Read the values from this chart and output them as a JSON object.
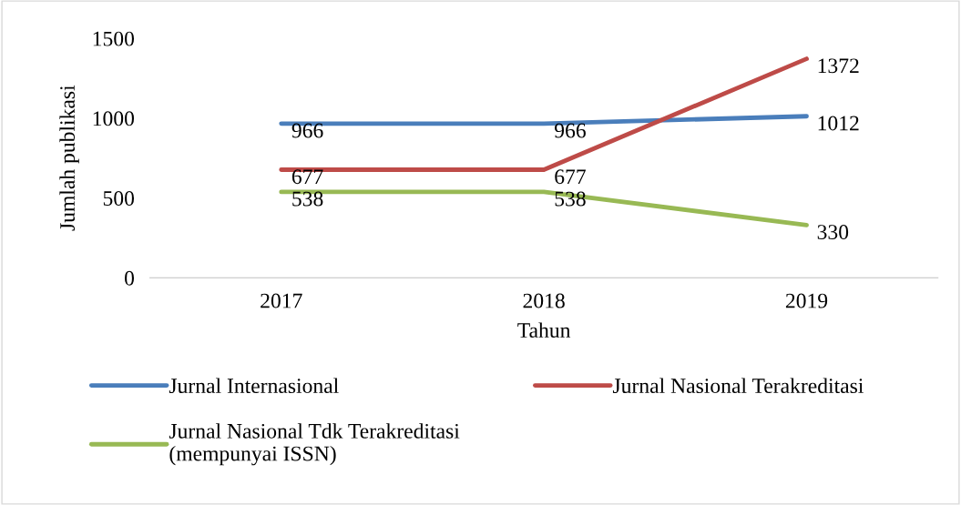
{
  "chart_data": {
    "type": "line",
    "xlabel": "Tahun",
    "ylabel": "Jumlah publikasi",
    "categories": [
      "2017",
      "2018",
      "2019"
    ],
    "series": [
      {
        "name": "Jurnal Internasional",
        "color": "#4a7ebb",
        "values": [
          966,
          966,
          1012
        ]
      },
      {
        "name": "Jurnal Nasional Terakreditasi",
        "color": "#be4b48",
        "values": [
          677,
          677,
          1372
        ]
      },
      {
        "name": "Jurnal Nasional Tdk Terakreditasi\n(mempunyai ISSN)",
        "color": "#98b954",
        "values": [
          538,
          538,
          330
        ]
      }
    ],
    "ylim": [
      0,
      1500
    ],
    "yticks": [
      0,
      500,
      1000,
      1500
    ],
    "data_labels": true,
    "legend": "bottom",
    "grid": false,
    "marker": "none",
    "line_style": "solid"
  }
}
